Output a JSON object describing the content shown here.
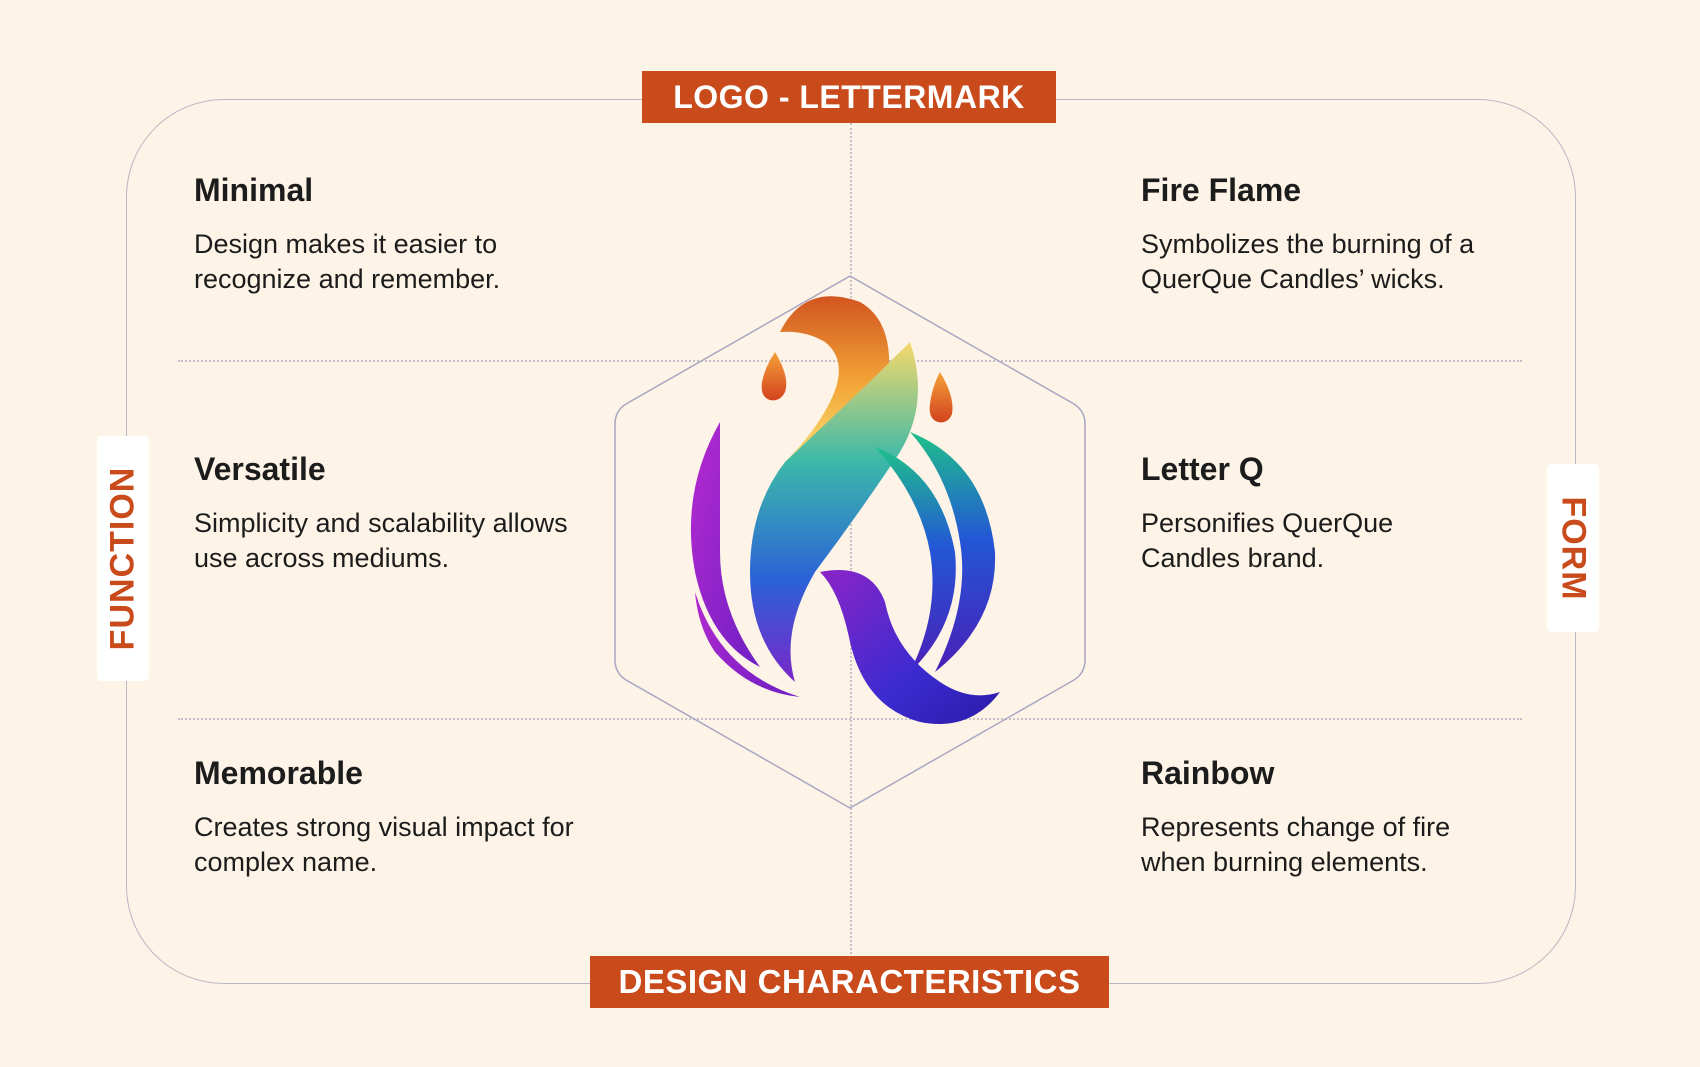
{
  "title": "LOGO - LETTERMARK",
  "footer": "DESIGN  CHARACTERISTICS",
  "left_axis": "FUNCTION",
  "right_axis": "FORM",
  "items": [
    {
      "title": "Minimal",
      "text": "Design makes it easier to recognize and remember."
    },
    {
      "title": "Fire Flame",
      "text": "Symbolizes the burning of a QuerQue Candles’ wicks."
    },
    {
      "title": "Versatile",
      "text": "Simplicity and scalability allows use across mediums."
    },
    {
      "title": "Letter Q",
      "text": "Personifies  QuerQue Candles brand."
    },
    {
      "title": "Memorable",
      "text": "Creates strong visual impact for complex name."
    },
    {
      "title": "Rainbow",
      "text": "Represents change of fire when burning elements."
    }
  ],
  "colors": {
    "background": "#fdf3e6",
    "accent": "#c94a1b",
    "frame": "#b8b6c4",
    "text": "#1c1c1c"
  },
  "logo": {
    "icon": "rainbow-flame-q-logo-icon"
  }
}
